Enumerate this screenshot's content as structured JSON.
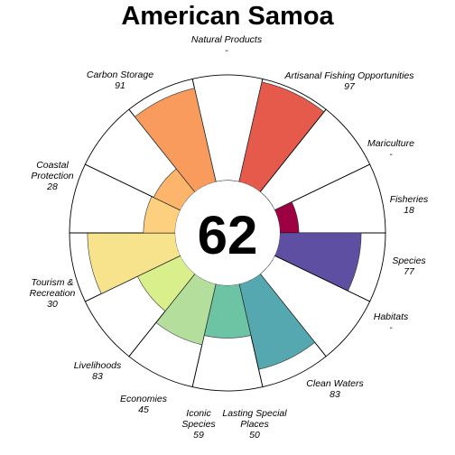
{
  "chart_data": {
    "type": "flower",
    "title": "American Samoa",
    "center_score": "62",
    "max_value": 100,
    "goals": [
      {
        "label": "Natural Products",
        "value_text": "-",
        "value": null,
        "color": "#ffffff"
      },
      {
        "label": "Artisanal Fishing Opportunities",
        "value_text": "97",
        "value": 97,
        "color": "#e55a4a"
      },
      {
        "label": "Mariculture",
        "value_text": "-",
        "value": null,
        "color": "#ffffff"
      },
      {
        "label": "Fisheries",
        "value_text": "18",
        "value": 18,
        "color": "#9e0142"
      },
      {
        "label": "Species",
        "value_text": "77",
        "value": 77,
        "color": "#5e4fa2"
      },
      {
        "label": "Habitats",
        "value_text": "-",
        "value": null,
        "color": "#ffffff"
      },
      {
        "label": "Clean Waters",
        "value_text": "83",
        "value": 83,
        "color": "#56a8b0"
      },
      {
        "label": "Lasting Special Places",
        "value_text": "50",
        "value": 50,
        "color": "#6cc4a4"
      },
      {
        "label": "Iconic Species",
        "value_text": "59",
        "value": 59,
        "color": "#b4de9c"
      },
      {
        "label": "Economies",
        "value_text": "45",
        "value": 45,
        "color": "#d9ef8b"
      },
      {
        "label": "Livelihoods",
        "value_text": "83",
        "value": 83,
        "color": "#f6e38c"
      },
      {
        "label": "Tourism & Recreation",
        "value_text": "30",
        "value": 30,
        "color": "#fdd07f"
      },
      {
        "label": "Coastal Protection",
        "value_text": "28",
        "value": 28,
        "color": "#fdb46b"
      },
      {
        "label": "Carbon Storage",
        "value_text": "91",
        "value": 91,
        "color": "#f99b5c"
      }
    ]
  }
}
